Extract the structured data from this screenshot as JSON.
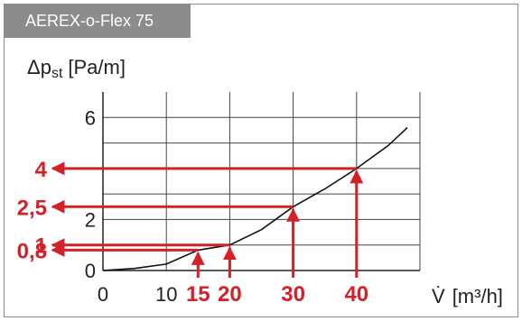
{
  "title": "AEREX-o-Flex 75",
  "chart_data": {
    "type": "line",
    "ylabel": "Δp",
    "ylabel_sub": "st",
    "ylabel_unit": "[Pa/m]",
    "xlabel": "V̇",
    "xlabel_unit": "[m³/h]",
    "xlim": [
      0,
      50
    ],
    "ylim": [
      0,
      7
    ],
    "x_ticks": [
      "0",
      "10"
    ],
    "y_ticks": [
      "0",
      "2",
      "6"
    ],
    "grid": true,
    "colors": {
      "curve": "#111111",
      "highlight": "#d42027",
      "grid": "#444444"
    },
    "curve": {
      "x": [
        0,
        5,
        10,
        15,
        20,
        25,
        30,
        35,
        40,
        45,
        48
      ],
      "y": [
        0,
        0.08,
        0.25,
        0.8,
        1.0,
        1.6,
        2.5,
        3.2,
        4.0,
        4.9,
        5.6
      ]
    },
    "highlights": [
      {
        "x": 15,
        "y": 0.8,
        "x_label": "15",
        "y_label": "0,8"
      },
      {
        "x": 20,
        "y": 1,
        "x_label": "20",
        "y_label": "1"
      },
      {
        "x": 30,
        "y": 2.5,
        "x_label": "30",
        "y_label": "2,5"
      },
      {
        "x": 40,
        "y": 4,
        "x_label": "40",
        "y_label": "4"
      }
    ]
  }
}
